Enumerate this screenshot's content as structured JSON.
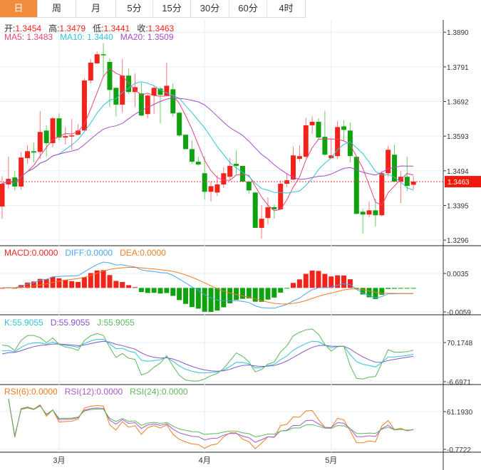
{
  "tabs": [
    {
      "label": "日",
      "active": true
    },
    {
      "label": "周"
    },
    {
      "label": "月"
    },
    {
      "label": "5分"
    },
    {
      "label": "15分"
    },
    {
      "label": "30分"
    },
    {
      "label": "60分"
    },
    {
      "label": "4时"
    }
  ],
  "ohlc_info": {
    "open_label": "开:",
    "open": "1.3454",
    "high_label": "高:",
    "high": "1.3479",
    "low_label": "低:",
    "low": "1.3441",
    "close_label": "收:",
    "close": "1.3463"
  },
  "ma_info": {
    "ma5": "MA5: 1.3483",
    "ma10": "MA10: 1.3440",
    "ma20": "MA20: 1.3509"
  },
  "macd_info": {
    "macd": "MACD:0.0000",
    "diff": "DIFF:0.0000",
    "dea": "DEA:0.0000"
  },
  "kdj_info": {
    "k": "K:55.9055",
    "d": "D:55.9055",
    "j": "J:55.9055"
  },
  "rsi_info": {
    "rsi6": "RSI(6):0.0000",
    "rsi12": "RSI(12):0.0000",
    "rsi24": "RSI(24):0.0000"
  },
  "colors": {
    "up": "#f2231a",
    "down": "#0ea20e",
    "ma5": "#e8437e",
    "ma10": "#31c4d8",
    "ma20": "#a54cc8",
    "diff": "#4aa3f0",
    "dea": "#f07c22",
    "k": "#31c4d8",
    "d": "#8a55cc",
    "j": "#5bb85b",
    "rsi6": "#f07c22",
    "rsi12": "#a55cc8",
    "rsi24": "#5bb85b",
    "tab_active": "#f08c3c"
  },
  "chart_data": {
    "type": "candlestick",
    "ylim": [
      1.328,
      1.3921
    ],
    "price_ticks": [
      "1.3890",
      "1.3791",
      "1.3692",
      "1.3593",
      "1.3494",
      "1.3395",
      "1.3296"
    ],
    "current_price": "1.3463",
    "macd_ticks": [
      "0.0035",
      "-0.0059"
    ],
    "kdj_ticks": [
      "70.1748",
      "-6.6971"
    ],
    "rsi_ticks": [
      "61.1930",
      "-0.7722"
    ],
    "x_labels": [
      {
        "label": "3月",
        "index": 9
      },
      {
        "label": "4月",
        "index": 32
      },
      {
        "label": "5月",
        "index": 52
      }
    ],
    "candles": [
      [
        1.3392,
        1.3479,
        1.3357,
        1.3457
      ],
      [
        1.3455,
        1.3534,
        1.3443,
        1.3471
      ],
      [
        1.3475,
        1.3493,
        1.3438,
        1.3449
      ],
      [
        1.3449,
        1.3548,
        1.344,
        1.3532
      ],
      [
        1.353,
        1.3567,
        1.3514,
        1.355
      ],
      [
        1.355,
        1.3575,
        1.3518,
        1.3546
      ],
      [
        1.3548,
        1.3664,
        1.3528,
        1.3605
      ],
      [
        1.3609,
        1.3624,
        1.3534,
        1.3573
      ],
      [
        1.3573,
        1.3648,
        1.3561,
        1.3644
      ],
      [
        1.3644,
        1.3658,
        1.3581,
        1.3589
      ],
      [
        1.3589,
        1.3619,
        1.3569,
        1.3593
      ],
      [
        1.3593,
        1.3642,
        1.3554,
        1.3595
      ],
      [
        1.3597,
        1.3626,
        1.3595,
        1.3609
      ],
      [
        1.3609,
        1.3758,
        1.3609,
        1.3752
      ],
      [
        1.3752,
        1.3813,
        1.3744,
        1.3803
      ],
      [
        1.3801,
        1.3835,
        1.3799,
        1.3827
      ],
      [
        1.3827,
        1.3859,
        1.3764,
        1.3825
      ],
      [
        1.3805,
        1.3815,
        1.3676,
        1.3725
      ],
      [
        1.3731,
        1.3731,
        1.365,
        1.3683
      ],
      [
        1.3683,
        1.3813,
        1.366,
        1.3766
      ],
      [
        1.3766,
        1.3786,
        1.3713,
        1.3719
      ],
      [
        1.3719,
        1.3772,
        1.3676,
        1.3733
      ],
      [
        1.3715,
        1.3746,
        1.365,
        1.3652
      ],
      [
        1.3656,
        1.3713,
        1.3644,
        1.3709
      ],
      [
        1.3709,
        1.3737,
        1.3656,
        1.3731
      ],
      [
        1.3729,
        1.3733,
        1.363,
        1.3711
      ],
      [
        1.3709,
        1.3803,
        1.3707,
        1.3737
      ],
      [
        1.3727,
        1.3744,
        1.3648,
        1.3658
      ],
      [
        1.366,
        1.3662,
        1.3591,
        1.3595
      ],
      [
        1.3597,
        1.3597,
        1.3556,
        1.3556
      ],
      [
        1.3556,
        1.3581,
        1.3514,
        1.352
      ],
      [
        1.352,
        1.3534,
        1.3508,
        1.3512
      ],
      [
        1.3487,
        1.3536,
        1.3412,
        1.3434
      ],
      [
        1.3434,
        1.3463,
        1.3406,
        1.345
      ],
      [
        1.3432,
        1.3481,
        1.3422,
        1.3455
      ],
      [
        1.3455,
        1.3504,
        1.3445,
        1.3487
      ],
      [
        1.3477,
        1.353,
        1.3467,
        1.3508
      ],
      [
        1.3514,
        1.3552,
        1.3483,
        1.3508
      ],
      [
        1.3508,
        1.3508,
        1.3463,
        1.3463
      ],
      [
        1.3463,
        1.3463,
        1.3428,
        1.3438
      ],
      [
        1.3432,
        1.3432,
        1.3331,
        1.3331
      ],
      [
        1.3331,
        1.3396,
        1.33,
        1.3357
      ],
      [
        1.3359,
        1.3418,
        1.3341,
        1.339
      ],
      [
        1.339,
        1.3398,
        1.3357,
        1.3384
      ],
      [
        1.3384,
        1.3467,
        1.3382,
        1.3457
      ],
      [
        1.3457,
        1.3487,
        1.3447,
        1.3467
      ],
      [
        1.3469,
        1.3563,
        1.3467,
        1.3538
      ],
      [
        1.3528,
        1.3567,
        1.352,
        1.3536
      ],
      [
        1.3534,
        1.3646,
        1.353,
        1.3624
      ],
      [
        1.3624,
        1.365,
        1.3599,
        1.3634
      ],
      [
        1.3634,
        1.3644,
        1.3585,
        1.3589
      ],
      [
        1.3591,
        1.3666,
        1.3536,
        1.354
      ],
      [
        1.353,
        1.3585,
        1.3528,
        1.3538
      ],
      [
        1.3536,
        1.3636,
        1.3528,
        1.3619
      ],
      [
        1.3621,
        1.3638,
        1.3581,
        1.3611
      ],
      [
        1.3609,
        1.3632,
        1.3518,
        1.3536
      ],
      [
        1.3534,
        1.3534,
        1.3369,
        1.3371
      ],
      [
        1.3377,
        1.3386,
        1.3314,
        1.3369
      ],
      [
        1.3369,
        1.3406,
        1.3361,
        1.3381
      ],
      [
        1.3381,
        1.3414,
        1.3335,
        1.3367
      ],
      [
        1.3367,
        1.3493,
        1.3363,
        1.3487
      ],
      [
        1.3487,
        1.3565,
        1.3477,
        1.3554
      ],
      [
        1.354,
        1.3569,
        1.3463,
        1.3463
      ],
      [
        1.3463,
        1.3493,
        1.3402,
        1.3477
      ],
      [
        1.3477,
        1.3534,
        1.3436,
        1.3451
      ],
      [
        1.3454,
        1.3479,
        1.3441,
        1.3463
      ]
    ]
  }
}
